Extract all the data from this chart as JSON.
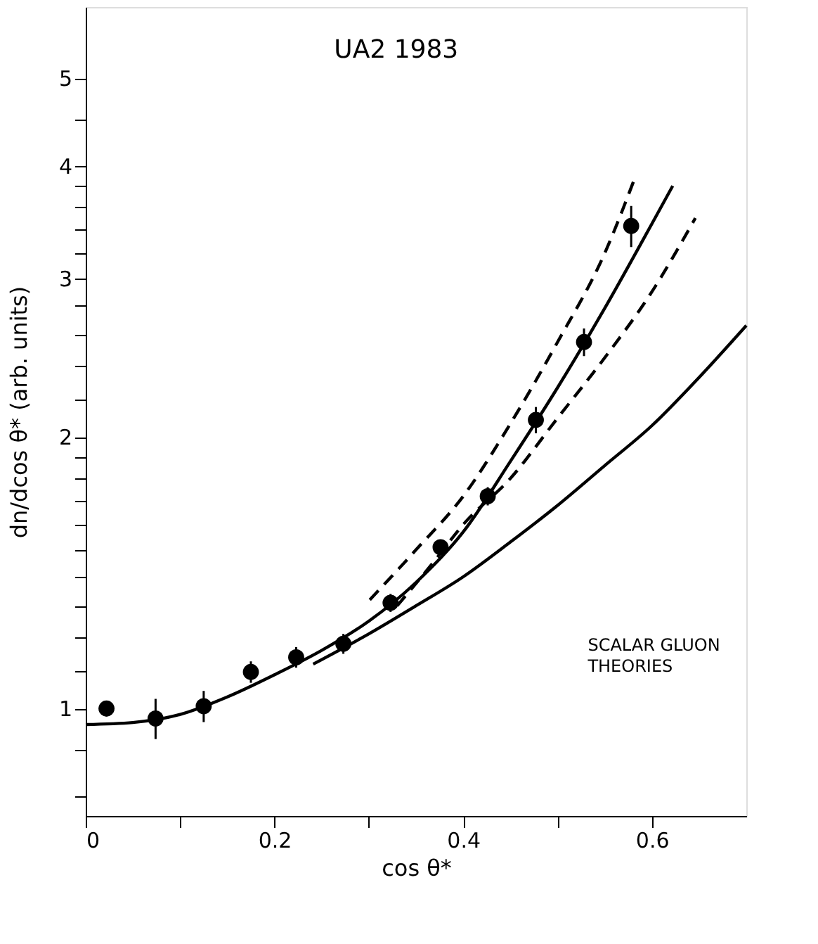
{
  "chart_data": {
    "type": "scatter",
    "xlabel": "cos θ*",
    "ylabel": "dn/dcos θ*   (arb. units)",
    "annotations": [
      "UA2 1983"
    ],
    "log": "y",
    "grid": false,
    "xlim": [
      0,
      0.7
    ],
    "ylim": [
      0.76,
      6.0
    ],
    "xticks": [
      0,
      {
        "value": 0.1,
        "label": null
      },
      0.2,
      {
        "value": 0.3,
        "label": null
      },
      0.4,
      {
        "value": 0.5,
        "label": null
      },
      0.6
    ],
    "yticks": [
      {
        "value": 0.8,
        "label": null
      },
      {
        "value": 0.9,
        "label": null
      },
      1,
      {
        "value": 1.1,
        "label": null
      },
      {
        "value": 1.2,
        "label": null
      },
      {
        "value": 1.3,
        "label": null
      },
      {
        "value": 1.4,
        "label": null
      },
      {
        "value": 1.5,
        "label": null
      },
      {
        "value": 1.6,
        "label": null
      },
      {
        "value": 1.7,
        "label": null
      },
      {
        "value": 1.8,
        "label": null
      },
      {
        "value": 1.9,
        "label": null
      },
      2,
      {
        "value": 2.2,
        "label": null
      },
      {
        "value": 2.4,
        "label": null
      },
      {
        "value": 2.6,
        "label": null
      },
      {
        "value": 2.8,
        "label": null
      },
      3,
      {
        "value": 3.2,
        "label": null
      },
      {
        "value": 3.4,
        "label": null
      },
      {
        "value": 3.6,
        "label": null
      },
      {
        "value": 3.8,
        "label": null
      },
      4,
      {
        "value": 4.5,
        "label": null
      },
      5
    ],
    "series": [
      {
        "color": "#000000",
        "marker": "circle",
        "x": [
          0.022,
          0.074,
          0.125,
          0.175,
          0.223,
          0.273,
          0.323,
          0.376,
          0.426,
          0.477,
          0.528,
          0.578
        ],
        "values": [
          1.0,
          0.975,
          1.006,
          1.098,
          1.14,
          1.18,
          1.31,
          1.51,
          1.72,
          2.09,
          2.55,
          3.43
        ],
        "errors": [
          0.02,
          0.05,
          0.04,
          0.03,
          0.03,
          0.03,
          0.03,
          0.03,
          0.04,
          0.07,
          0.09,
          [
            3.25,
            3.61
          ]
        ]
      },
      {
        "type": "line",
        "color": "#000000",
        "line_style": "solid",
        "x": [
          0,
          0.05,
          0.1,
          0.15,
          0.2,
          0.25,
          0.3,
          0.35,
          0.4,
          0.45,
          0.5,
          0.55,
          0.6,
          0.622
        ],
        "values": [
          0.96,
          0.965,
          0.985,
          1.03,
          1.09,
          1.16,
          1.25,
          1.38,
          1.57,
          1.88,
          2.27,
          2.78,
          3.45,
          3.8
        ]
      },
      {
        "type": "line",
        "color": "#000000",
        "line_style": "dashed",
        "x": [
          0.301,
          0.35,
          0.4,
          0.45,
          0.5,
          0.55,
          0.582
        ],
        "values": [
          1.32,
          1.5,
          1.72,
          2.07,
          2.55,
          3.2,
          3.88
        ]
      },
      {
        "type": "line",
        "color": "#000000",
        "line_style": "dashed",
        "x": [
          0.33,
          0.37,
          0.4,
          0.45,
          0.5,
          0.55,
          0.6,
          0.646
        ],
        "values": [
          1.3,
          1.46,
          1.6,
          1.8,
          2.1,
          2.45,
          2.9,
          3.5
        ]
      },
      {
        "type": "line",
        "name": "SCALAR GLUON THEORIES",
        "color": "#000000",
        "line_style": "solid",
        "x": [
          0.241,
          0.3,
          0.35,
          0.4,
          0.45,
          0.5,
          0.55,
          0.6,
          0.65,
          0.7
        ],
        "values": [
          1.12,
          1.21,
          1.3,
          1.4,
          1.53,
          1.68,
          1.86,
          2.06,
          2.33,
          2.66
        ]
      }
    ]
  }
}
